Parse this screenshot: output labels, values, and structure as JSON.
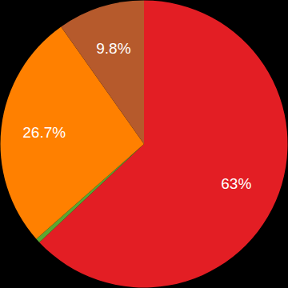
{
  "chart_data": {
    "type": "pie",
    "values": [
      63,
      0.5,
      26.7,
      9.8
    ],
    "value_labels": [
      "63%",
      null,
      "26.7%",
      "9.8%"
    ],
    "colors": [
      "#e31e24",
      "#5aa832",
      "#ff8000",
      "#b65a2c"
    ],
    "data_labels": true
  }
}
